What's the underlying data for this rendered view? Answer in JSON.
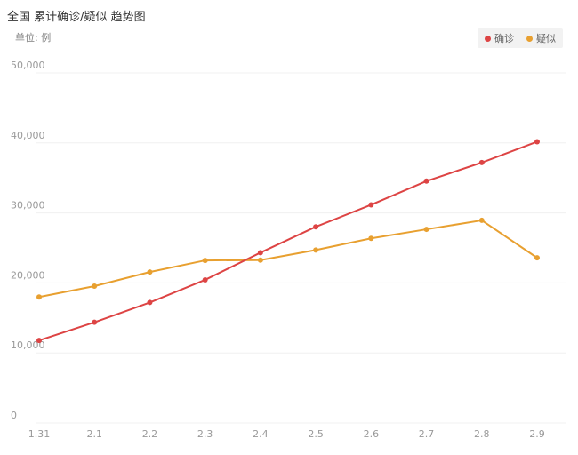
{
  "header": {
    "title": "全国 累计确诊/疑似 趋势图",
    "unit": "单位: 例"
  },
  "chart_data": {
    "type": "line",
    "categories": [
      "1.31",
      "2.1",
      "2.2",
      "2.3",
      "2.4",
      "2.5",
      "2.6",
      "2.7",
      "2.8",
      "2.9"
    ],
    "series": [
      {
        "name": "确诊",
        "color": "#dd4444",
        "values": [
          11791,
          14380,
          17205,
          20438,
          24324,
          28018,
          31161,
          34546,
          37198,
          40171
        ]
      },
      {
        "name": "疑似",
        "color": "#e8a030",
        "values": [
          17988,
          19544,
          21558,
          23214,
          23260,
          24702,
          26359,
          27657,
          28942,
          23589
        ]
      }
    ],
    "yticks": [
      "0",
      "10,000",
      "20,000",
      "30,000",
      "40,000",
      "50,000"
    ],
    "ylim": [
      0,
      50000
    ],
    "grid": true,
    "legend_position": "top-right"
  }
}
